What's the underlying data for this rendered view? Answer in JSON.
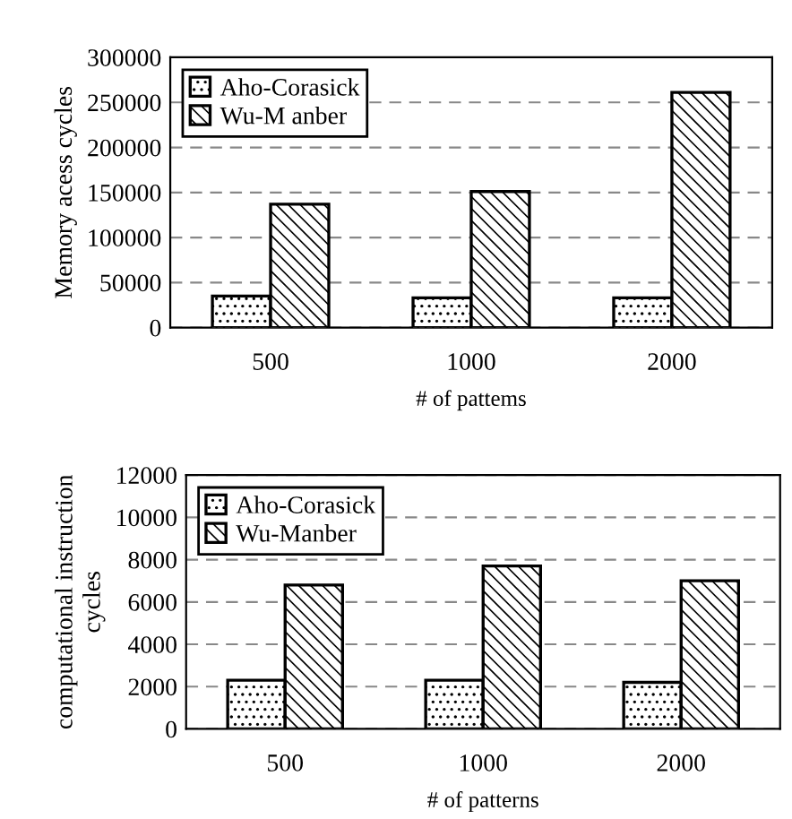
{
  "chart_data": [
    {
      "type": "bar",
      "categories": [
        "500",
        "1000",
        "2000"
      ],
      "xlabel": "# of pattems",
      "ylabel": "Memory acess cycles",
      "series": [
        {
          "name": "Aho-Corasick",
          "color": "#000000",
          "values": [
            35000,
            33000,
            33000
          ]
        },
        {
          "name": "Wu-M anber",
          "color": "#000000",
          "values": [
            137000,
            151000,
            261000
          ]
        }
      ],
      "ylim": [
        0,
        300000
      ],
      "yticks": [
        0,
        50000,
        100000,
        150000,
        200000,
        250000,
        300000
      ],
      "grid": "y",
      "legend": "top left"
    },
    {
      "type": "bar",
      "categories": [
        "500",
        "1000",
        "2000"
      ],
      "xlabel": "# of patterns",
      "ylabel": "computational instruction cycles",
      "series": [
        {
          "name": "Aho-Corasick",
          "color": "#000000",
          "values": [
            2300,
            2300,
            2200
          ]
        },
        {
          "name": "Wu-Manber",
          "color": "#000000",
          "values": [
            6800,
            7700,
            7000
          ]
        }
      ],
      "ylim": [
        0,
        12000
      ],
      "yticks": [
        0,
        2000,
        4000,
        6000,
        8000,
        10000,
        12000
      ],
      "grid": "y",
      "legend": "top left"
    }
  ]
}
